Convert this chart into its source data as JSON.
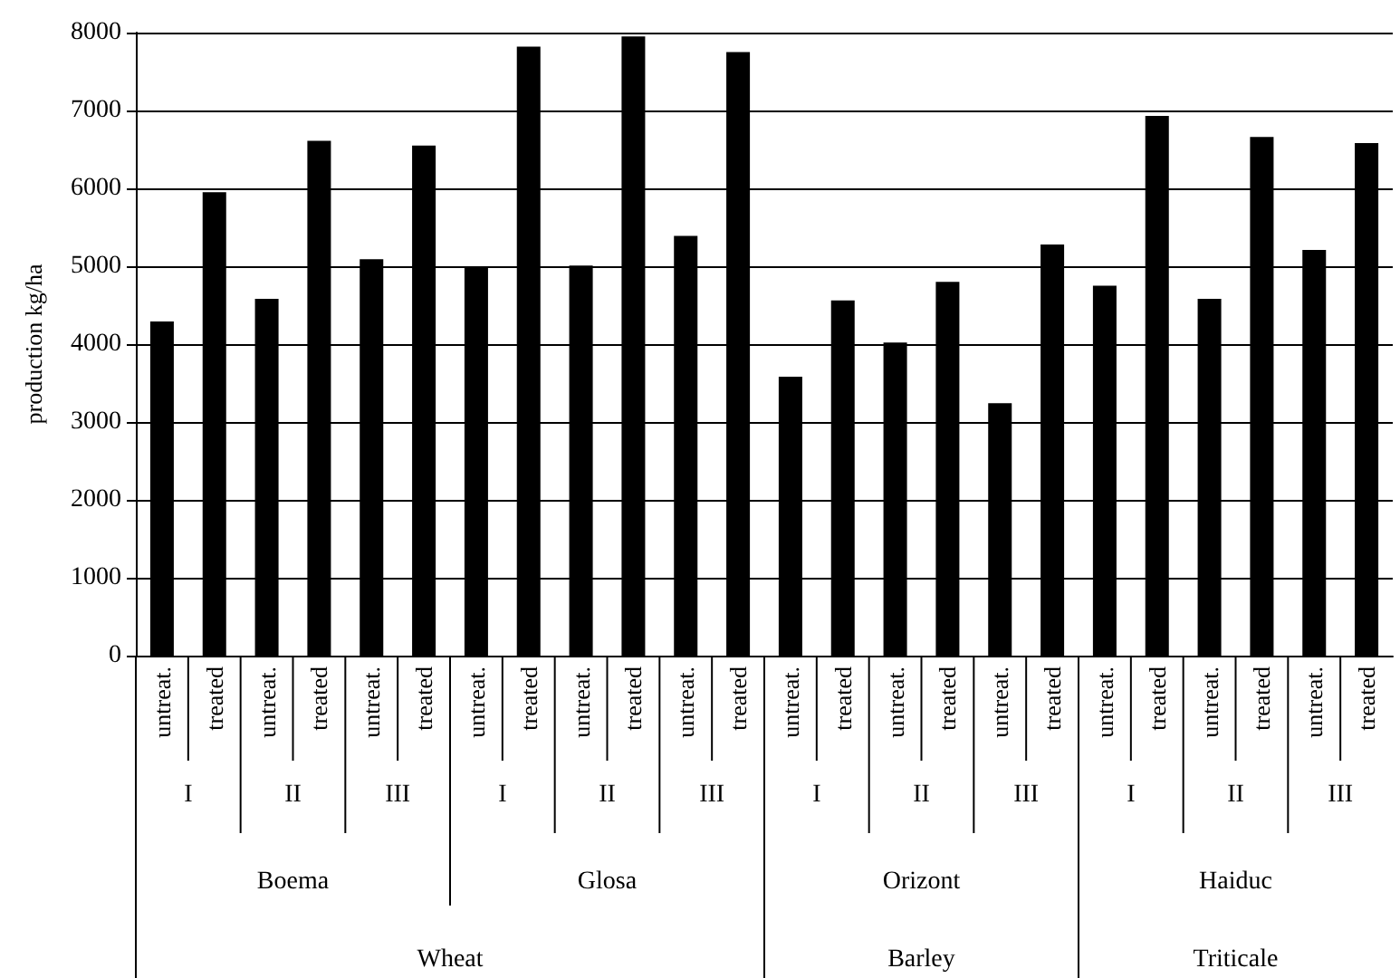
{
  "chart_data": {
    "type": "bar",
    "ylabel": "production kg/ha",
    "categories": [
      "untreat.",
      "treated",
      "untreat.",
      "treated",
      "untreat.",
      "treated",
      "untreat.",
      "treated",
      "untreat.",
      "treated",
      "untreat.",
      "treated",
      "untreat.",
      "treated",
      "untreat.",
      "treated",
      "untreat.",
      "treated",
      "untreat.",
      "treated",
      "untreat.",
      "treated",
      "untreat.",
      "treated"
    ],
    "values": [
      4290,
      5950,
      4580,
      6610,
      5090,
      6550,
      4980,
      7820,
      5010,
      7950,
      5390,
      7750,
      3580,
      4560,
      4020,
      4800,
      3240,
      5280,
      4750,
      6930,
      4580,
      6660,
      5210,
      6580
    ],
    "color": "#000000",
    "ylim": [
      0,
      8000
    ],
    "yticks": [
      0,
      1000,
      2000,
      3000,
      4000,
      5000,
      6000,
      7000,
      8000
    ],
    "grid": "y",
    "annotations": [
      "I",
      "II",
      "III",
      "I",
      "II",
      "III",
      "I",
      "II",
      "III",
      "I",
      "II",
      "III",
      "Boema",
      "Glosa",
      "Orizont",
      "Haiduc",
      "Wheat",
      "Barley",
      "Triticale"
    ]
  }
}
